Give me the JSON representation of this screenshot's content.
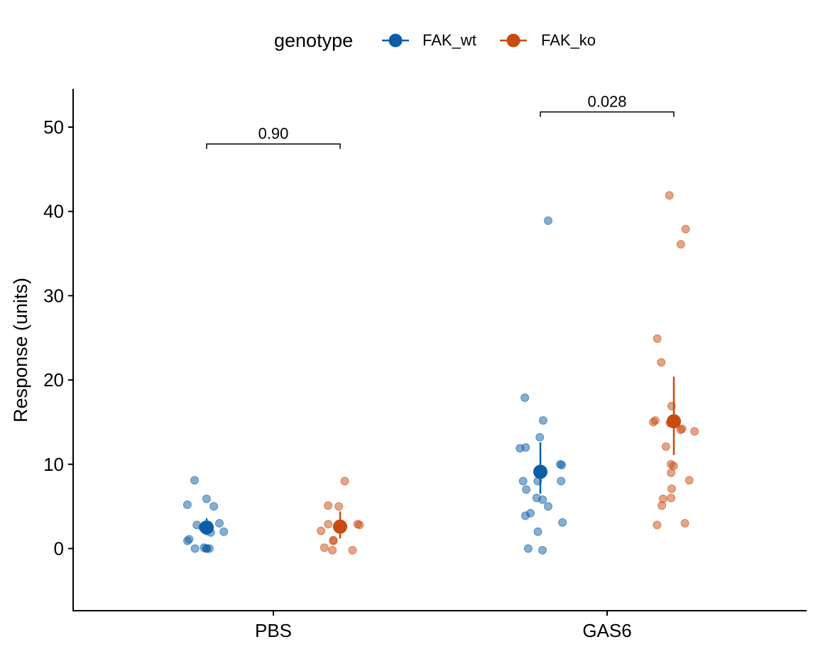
{
  "chart_data": {
    "type": "scatter",
    "title": "",
    "xlabel": "",
    "ylabel": "Response (units)",
    "ylim": [
      -7.3,
      54.5
    ],
    "yticks": [
      0,
      10,
      20,
      30,
      40,
      50
    ],
    "categories": [
      "PBS",
      "GAS6"
    ],
    "grid": false,
    "legend": {
      "title": "genotype",
      "placement": "top",
      "entries": [
        "FAK_wt",
        "FAK_ko"
      ]
    },
    "series": [
      {
        "name": "FAK_wt",
        "color": "#0C5DA5",
        "points": {
          "PBS": [
            0.0,
            0.0,
            1.1,
            0.0,
            0.1,
            0.0,
            0.9,
            2.0,
            1.9,
            2.5,
            2.8,
            3.0,
            5.0,
            5.2,
            5.9,
            8.1
          ],
          "GAS6": [
            38.9,
            17.9,
            15.2,
            13.2,
            12.0,
            11.9,
            10.0,
            9.9,
            8.0,
            8.0,
            8.0,
            7.0,
            6.0,
            5.8,
            5.0,
            4.2,
            3.9,
            3.1,
            2.0,
            0.0,
            -0.2
          ]
        },
        "mean": {
          "PBS": 2.5,
          "GAS6": 9.1
        },
        "ci": {
          "PBS": [
            1.6,
            3.6
          ],
          "GAS6": [
            6.5,
            12.6
          ]
        }
      },
      {
        "name": "FAK_ko",
        "color": "#C84B0F",
        "points": {
          "PBS": [
            -0.2,
            0.1,
            -0.2,
            0.9,
            1.0,
            2.1,
            2.8,
            2.9,
            2.9,
            5.0,
            5.1,
            8.0
          ],
          "GAS6": [
            41.9,
            37.9,
            36.1,
            24.9,
            22.1,
            16.9,
            15.2,
            15.0,
            14.9,
            14.2,
            14.1,
            13.9,
            12.1,
            10.0,
            9.8,
            9.0,
            8.1,
            7.1,
            6.0,
            5.9,
            5.1,
            3.0,
            2.8
          ]
        },
        "mean": {
          "PBS": 2.6,
          "GAS6": 15.1
        },
        "ci": {
          "PBS": [
            1.2,
            4.4
          ],
          "GAS6": [
            11.1,
            20.4
          ]
        }
      }
    ],
    "comparisons": [
      {
        "group": "PBS",
        "label": "0.90",
        "y": 48.0
      },
      {
        "group": "GAS6",
        "label": "0.028",
        "y": 51.8
      }
    ]
  }
}
